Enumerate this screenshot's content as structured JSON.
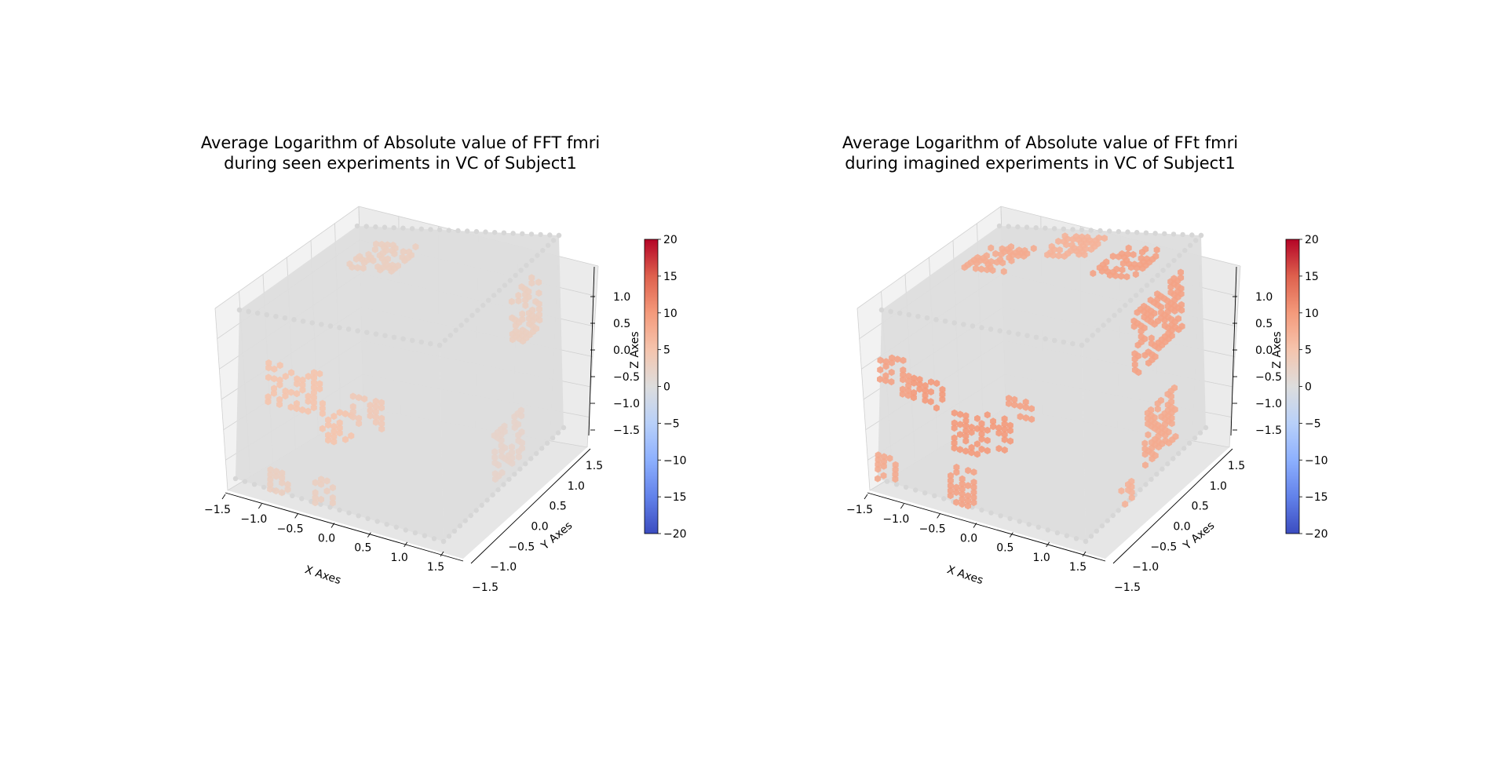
{
  "chart_data": [
    {
      "type": "scatter",
      "projection": "3d",
      "title_line1": "Average Logarithm of Absolute value of FFT fmri",
      "title_line2": "during seen experiments in VC of Subject1",
      "xlabel": "X Axes",
      "ylabel": "Y Axes",
      "zlabel": "Z Axes",
      "x_ticks": [
        "−1.5",
        "−1.0",
        "−0.5",
        "0.0",
        "0.5",
        "1.0",
        "1.5"
      ],
      "y_ticks": [
        "−1.5",
        "−1.0",
        "−0.5",
        "0.0",
        "0.5",
        "1.0",
        "1.5"
      ],
      "z_ticks": [
        "−1.5",
        "−1.0",
        "−0.5",
        "0.0",
        "0.5",
        "1.0"
      ],
      "xlim": [
        -1.5,
        1.5
      ],
      "ylim": [
        -1.5,
        1.5
      ],
      "zlim": [
        -1.5,
        1.5
      ],
      "colormap": "coolwarm",
      "colorbar_ticks": [
        "20",
        "15",
        "10",
        "5",
        "0",
        "−5",
        "−10",
        "−15",
        "−20"
      ],
      "colorbar_range": [
        -20,
        20
      ],
      "voxel_base_value": 0,
      "activation_regions": [
        {
          "face": "front",
          "u": [
            -1.05,
            -0.25
          ],
          "v": [
            0.0,
            0.7
          ],
          "value": 5
        },
        {
          "face": "front",
          "u": [
            -0.25,
            0.25
          ],
          "v": [
            -0.4,
            0.2
          ],
          "value": 5
        },
        {
          "face": "front",
          "u": [
            0.2,
            0.65
          ],
          "v": [
            0.0,
            0.45
          ],
          "value": 4
        },
        {
          "face": "front",
          "u": [
            -1.0,
            -0.7
          ],
          "v": [
            -1.5,
            -1.1
          ],
          "value": 3
        },
        {
          "face": "front",
          "u": [
            -0.35,
            -0.05
          ],
          "v": [
            -1.5,
            -1.05
          ],
          "value": 3
        },
        {
          "face": "right",
          "u": [
            0.3,
            1.0
          ],
          "v": [
            0.4,
            1.3
          ],
          "value": 3
        },
        {
          "face": "right",
          "u": [
            -0.2,
            0.5
          ],
          "v": [
            -1.3,
            -0.6
          ],
          "value": 2
        },
        {
          "face": "top",
          "u": [
            -0.9,
            -0.2
          ],
          "v": [
            0.2,
            1.0
          ],
          "value": 3
        }
      ]
    },
    {
      "type": "scatter",
      "projection": "3d",
      "title_line1": "Average Logarithm of Absolute value of FFt fmri",
      "title_line2": "during imagined experiments in VC of Subject1",
      "xlabel": "X Axes",
      "ylabel": "Y Axes",
      "zlabel": "Z Axes",
      "x_ticks": [
        "−1.5",
        "−1.0",
        "−0.5",
        "0.0",
        "0.5",
        "1.0",
        "1.5"
      ],
      "y_ticks": [
        "−1.5",
        "−1.0",
        "−0.5",
        "0.0",
        "0.5",
        "1.0",
        "1.5"
      ],
      "z_ticks": [
        "−1.5",
        "−1.0",
        "−0.5",
        "0.0",
        "0.5",
        "1.0"
      ],
      "xlim": [
        -1.5,
        1.5
      ],
      "ylim": [
        -1.5,
        1.5
      ],
      "zlim": [
        -1.5,
        1.5
      ],
      "colormap": "coolwarm",
      "colorbar_ticks": [
        "20",
        "15",
        "10",
        "5",
        "0",
        "−5",
        "−10",
        "−15",
        "−20"
      ],
      "colorbar_range": [
        -20,
        20
      ],
      "voxel_base_value": 0,
      "activation_regions": [
        {
          "face": "front",
          "u": [
            -1.5,
            -1.0
          ],
          "v": [
            0.1,
            0.75
          ],
          "value": 9
        },
        {
          "face": "front",
          "u": [
            -1.0,
            -0.5
          ],
          "v": [
            0.0,
            0.45
          ],
          "value": 10
        },
        {
          "face": "front",
          "u": [
            -0.4,
            0.0
          ],
          "v": [
            -0.6,
            0.0
          ],
          "value": 10
        },
        {
          "face": "front",
          "u": [
            0.0,
            0.45
          ],
          "v": [
            -0.5,
            0.2
          ],
          "value": 10
        },
        {
          "face": "front",
          "u": [
            0.4,
            0.8
          ],
          "v": [
            0.1,
            0.45
          ],
          "value": 9
        },
        {
          "face": "front",
          "u": [
            -1.5,
            -1.2
          ],
          "v": [
            -1.5,
            -1.05
          ],
          "value": 8
        },
        {
          "face": "front",
          "u": [
            -0.45,
            -0.1
          ],
          "v": [
            -1.5,
            -0.85
          ],
          "value": 9
        },
        {
          "face": "top",
          "u": [
            -1.2,
            -0.6
          ],
          "v": [
            0.1,
            0.9
          ],
          "value": 8
        },
        {
          "face": "top",
          "u": [
            -0.4,
            0.2
          ],
          "v": [
            0.7,
            1.3
          ],
          "value": 7
        },
        {
          "face": "top",
          "u": [
            0.6,
            1.2
          ],
          "v": [
            0.3,
            1.1
          ],
          "value": 9
        },
        {
          "face": "right",
          "u": [
            -0.2,
            1.0
          ],
          "v": [
            0.3,
            1.3
          ],
          "value": 9
        },
        {
          "face": "right",
          "u": [
            0.0,
            0.8
          ],
          "v": [
            -1.2,
            -0.4
          ],
          "value": 8
        },
        {
          "face": "right",
          "u": [
            -0.6,
            -0.2
          ],
          "v": [
            -1.5,
            -1.2
          ],
          "value": 7
        }
      ]
    }
  ]
}
